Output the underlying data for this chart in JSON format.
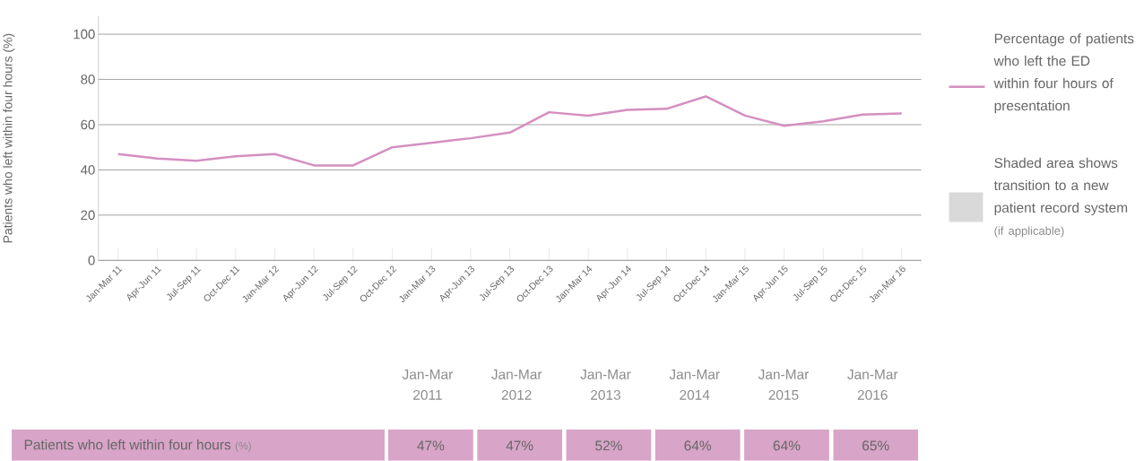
{
  "chart_data": {
    "type": "line",
    "ylabel": "Patients who left within four hours (%)",
    "categories": [
      "Jan-Mar 11",
      "Apr-Jun 11",
      "Jul-Sep 11",
      "Oct-Dec 11",
      "Jan-Mar 12",
      "Apr-Jun 12",
      "Jul-Sep 12",
      "Oct-Dec 12",
      "Jan-Mar 13",
      "Apr-Jun 13",
      "Jul-Sep 13",
      "Oct-Dec 13",
      "Jan-Mar 14",
      "Apr-Jun 14",
      "Jul-Sep 14",
      "Oct-Dec 14",
      "Jan-Mar 15",
      "Apr-Jun 15",
      "Jul-Sep 15",
      "Oct-Dec 15",
      "Jan-Mar 16"
    ],
    "series": [
      {
        "name": "Percentage of patients who left the ED within four hours of presentation",
        "color": "#d48fc0",
        "values": [
          47,
          45,
          44,
          46,
          47,
          42,
          42,
          50,
          52,
          54,
          56.5,
          65.5,
          64,
          66.5,
          67,
          72.5,
          64,
          59.5,
          61.5,
          64.5,
          65
        ]
      }
    ],
    "ylim": [
      0,
      108
    ],
    "yticks": [
      0,
      20,
      40,
      60,
      80,
      100
    ],
    "grid": "y",
    "legend": "right",
    "marker": "none",
    "line_style": "solid",
    "annotations": [
      "Jan-Mar 2011",
      "Jan-Mar 2012",
      "Jan-Mar 2013",
      "Jan-Mar 2014",
      "Jan-Mar 2015",
      "Jan-Mar 2016",
      "Patients who left within four hours",
      "(%)",
      "Shaded area shows transition to a new patient record system",
      "(if applicable)",
      "47%",
      "47%",
      "52%",
      "64%",
      "64%",
      "65%"
    ]
  }
}
